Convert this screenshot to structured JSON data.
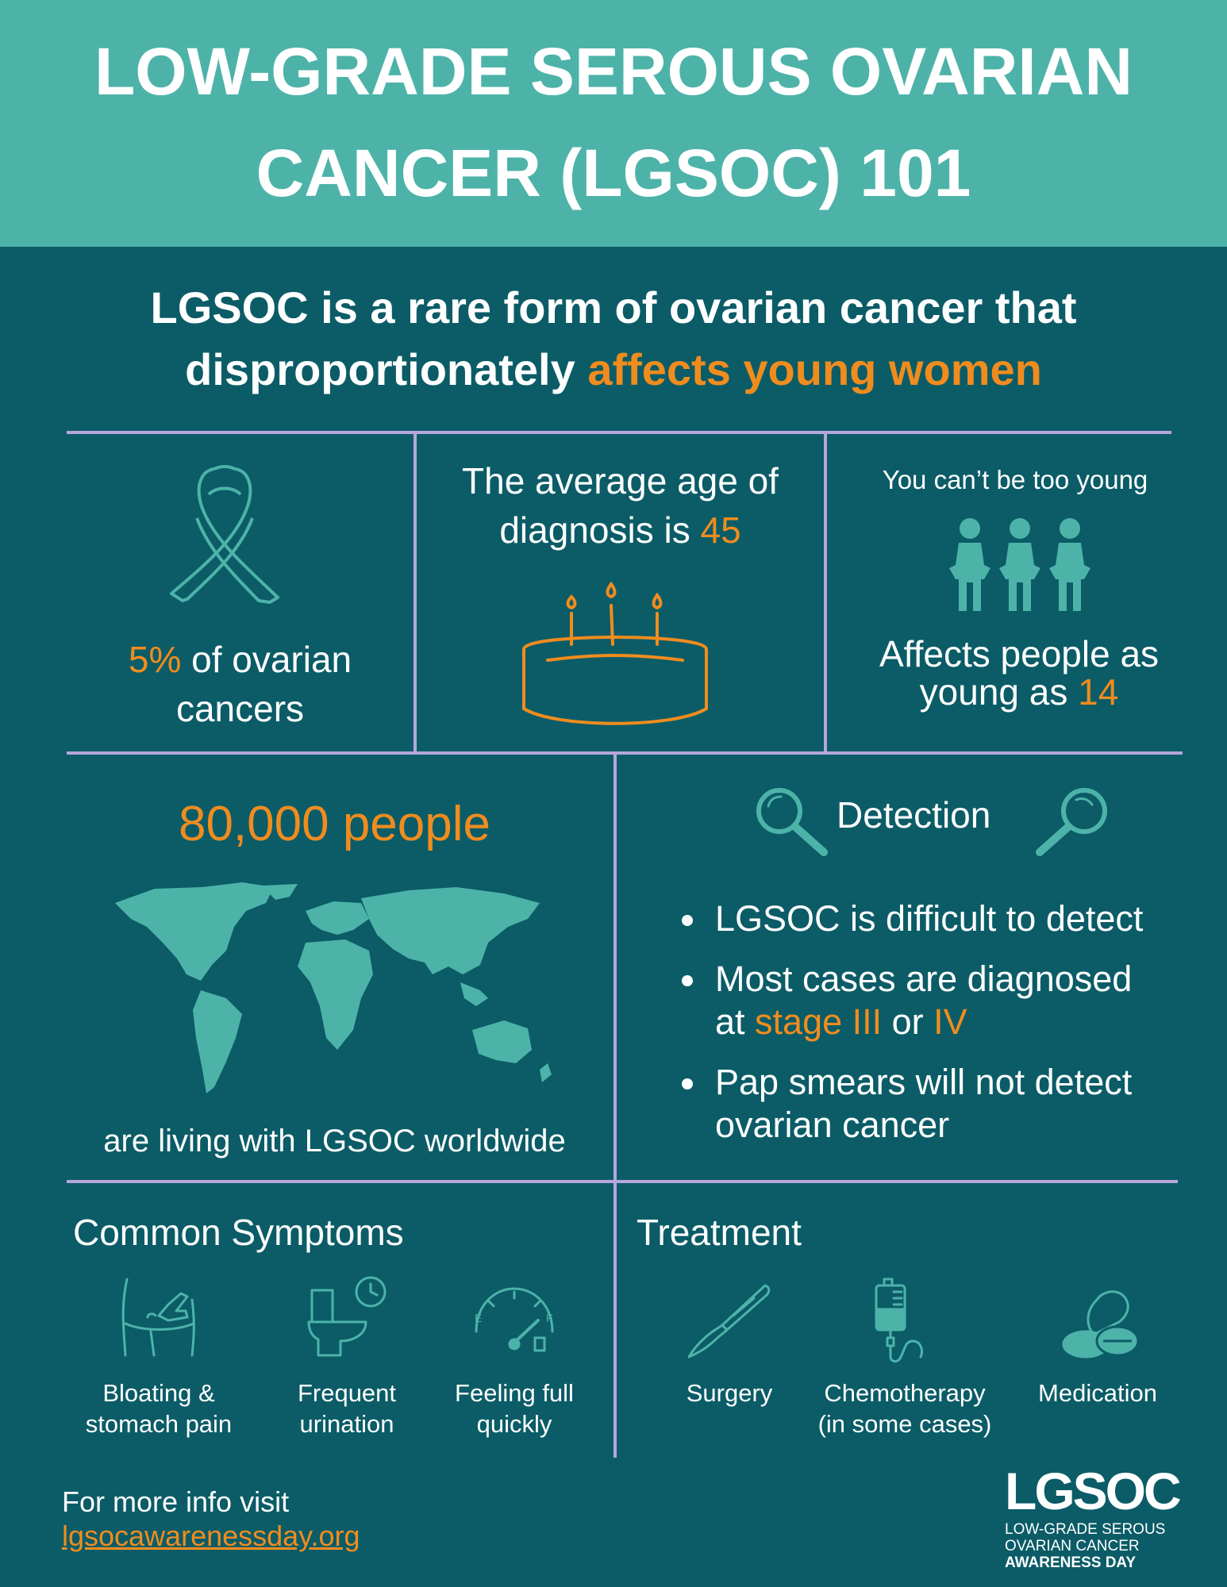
{
  "header": {
    "title_line1": "LOW-GRADE SEROUS OVARIAN",
    "title_line2": "CANCER (LGSOC) 101"
  },
  "intro": {
    "line1": "LGSOC is a rare form of ovarian cancer that",
    "line2_prefix": "disproportionately ",
    "line2_highlight": "affects young women"
  },
  "stats": {
    "percent": {
      "value": "5%",
      "text_after": " of ovarian",
      "line2": "cancers"
    },
    "age": {
      "line1": "The average age of",
      "line2_prefix": "diagnosis is ",
      "value": "45"
    },
    "young": {
      "tagline": "You can’t be too young",
      "line1": "Affects people as",
      "line2_prefix": "young as ",
      "value": "14"
    }
  },
  "worldwide": {
    "headline": "80,000 people",
    "caption": "are living with LGSOC worldwide"
  },
  "detection": {
    "title": "Detection",
    "bullets": {
      "b1": "LGSOC is difficult to detect",
      "b2_line1": "Most cases are diagnosed",
      "b2_prefix": "at ",
      "b2_stage": "stage III",
      "b2_or": " or ",
      "b2_iv": "IV",
      "b3_line1": "Pap smears will not detect",
      "b3_line2": "ovarian cancer"
    }
  },
  "symptoms": {
    "title": "Common Symptoms",
    "items": [
      {
        "line1": "Bloating &",
        "line2": "stomach pain",
        "icon": "abdomen-pain-icon"
      },
      {
        "line1": "Frequent",
        "line2": "urination",
        "icon": "toilet-clock-icon"
      },
      {
        "line1": "Feeling full",
        "line2": "quickly",
        "icon": "fuel-gauge-icon"
      }
    ]
  },
  "treatment": {
    "title": "Treatment",
    "items": [
      {
        "line1": "Surgery",
        "line2": "",
        "icon": "scalpel-icon"
      },
      {
        "line1": "Chemotherapy",
        "line2": "(in some cases)",
        "icon": "iv-bag-icon"
      },
      {
        "line1": "Medication",
        "line2": "",
        "icon": "pills-icon"
      }
    ]
  },
  "footer": {
    "info_text": "For more info visit",
    "link_text": "lgsocawarenessday.org",
    "logo_mark": "LGSOC",
    "logo_line1": "LOW-GRADE SEROUS",
    "logo_line2": "OVARIAN CANCER",
    "logo_line3": "AWARENESS DAY"
  },
  "colors": {
    "header_bg": "#4db3a9",
    "page_bg": "#0b5c67",
    "accent": "#f08c1e",
    "icon_teal": "#4db3a9",
    "divider": "#b6a6dc"
  }
}
